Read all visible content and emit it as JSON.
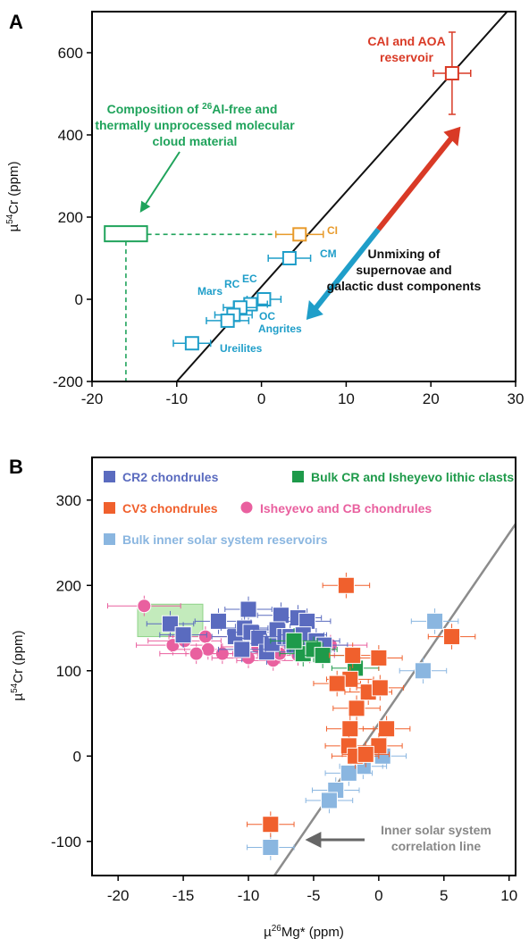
{
  "colors": {
    "cai": "#d93a26",
    "ci": "#e89a2a",
    "inner": "#1f9ec9",
    "cloud": "#1fa35b",
    "black": "#111111",
    "cr2": "#5a6bbf",
    "cv3": "#f0602d",
    "bulk_cr": "#1e9a4a",
    "cb": "#e9609f",
    "bulk_inner": "#8ab6e0",
    "line_gray": "#8c8c8c",
    "arrow_gray": "#666666"
  },
  "panels": {
    "a": {
      "letter": "A"
    },
    "b": {
      "letter": "B"
    }
  },
  "chart_data": [
    {
      "panel": "A",
      "type": "scatter",
      "xlim": [
        -20,
        30
      ],
      "ylim": [
        -200,
        700
      ],
      "xticks": [
        -20,
        -10,
        0,
        10,
        20,
        30
      ],
      "yticks": [
        -200,
        0,
        200,
        400,
        600
      ],
      "ylabel_parts": [
        "µ",
        "54",
        "Cr (ppm)"
      ],
      "correlation_line": {
        "p1": [
          -10,
          -200
        ],
        "p2": [
          29,
          700
        ]
      },
      "points": [
        {
          "name": "CAI and AOA reservoir",
          "x": 22.5,
          "y": 550,
          "xerr": 2.2,
          "yerr": 100,
          "color": "cai"
        },
        {
          "name": "CI",
          "x": 4.5,
          "y": 158,
          "xerr": 2.8,
          "yerr": 10,
          "color": "ci"
        },
        {
          "name": "CM",
          "x": 3.3,
          "y": 100,
          "xerr": 2.5,
          "yerr": 12,
          "color": "inner"
        },
        {
          "name": "EC",
          "x": 0.3,
          "y": 0,
          "xerr": 2.0,
          "yerr": 10,
          "color": "inner"
        },
        {
          "name": "RC",
          "x": -1.3,
          "y": -12,
          "xerr": 2.0,
          "yerr": 10,
          "color": "inner"
        },
        {
          "name": "Mars",
          "x": -2.5,
          "y": -20,
          "xerr": 2.0,
          "yerr": 10,
          "color": "inner"
        },
        {
          "name": "OC",
          "x": -3.3,
          "y": -38,
          "xerr": 2.2,
          "yerr": 10,
          "color": "inner"
        },
        {
          "name": "Angrites",
          "x": -4.0,
          "y": -52,
          "xerr": 2.5,
          "yerr": 12,
          "color": "inner"
        },
        {
          "name": "Ureilites",
          "x": -8.2,
          "y": -107,
          "xerr": 2.2,
          "yerr": 10,
          "color": "inner"
        }
      ],
      "point_labels": {
        "cai": "CAI and AOA\nreservoir",
        "ci": "CI",
        "cm": "CM",
        "ec": "EC",
        "rc": "RC",
        "mars": "Mars",
        "oc": "OC",
        "angrites": "Angrites",
        "ureilites": "Ureilites"
      },
      "cloud_box": {
        "x": [
          -18.5,
          -13.5
        ],
        "y": [
          141,
          178
        ],
        "level_y": 158,
        "x_mid": -16
      },
      "cloud_text": {
        "l1_pre": "Composition of ",
        "l1_sup": "26",
        "l1_post": "Al-free and",
        "l2": "thermally unprocessed molecular",
        "l3": "cloud material"
      },
      "unmixing_text": [
        "Unmixing of",
        "supernovae and",
        "galactic dust components"
      ]
    },
    {
      "panel": "B",
      "type": "scatter",
      "xlim": [
        -22,
        10.5
      ],
      "ylim": [
        -140,
        350
      ],
      "xticks": [
        -20,
        -15,
        -10,
        -5,
        0,
        5,
        10
      ],
      "yticks": [
        -100,
        0,
        100,
        200,
        300
      ],
      "xlabel_parts": [
        "µ",
        "26",
        "Mg* (ppm)"
      ],
      "ylabel_parts": [
        "µ",
        "54",
        "Cr (ppm)"
      ],
      "legend": [
        "CR2 chondrules",
        "Bulk CR and Isheyevo lithic clasts",
        "CV3 chondrules",
        "Isheyevo and CB chondrules",
        "Bulk inner solar system reservoirs"
      ],
      "annotation": [
        "Inner solar system",
        "correlation line"
      ],
      "correlation_line": {
        "p1": [
          -8,
          -140
        ],
        "p2": [
          10.5,
          272
        ]
      },
      "green_box": {
        "x": [
          -18.5,
          -13.5
        ],
        "y": [
          140,
          178
        ]
      },
      "series": [
        {
          "name": "CR2 chondrules",
          "color": "cr2",
          "shape": "square",
          "points": [
            [
              -16,
              155
            ],
            [
              -15,
              142
            ],
            [
              -12.3,
              158
            ],
            [
              -10,
              172
            ],
            [
              -7.5,
              165
            ],
            [
              -6.2,
              162
            ],
            [
              -5.5,
              158
            ],
            [
              -11,
              140
            ],
            [
              -10.3,
              150
            ],
            [
              -9.8,
              145
            ],
            [
              -9.2,
              138
            ],
            [
              -8.6,
              122
            ],
            [
              -8.2,
              132
            ],
            [
              -7.8,
              148
            ],
            [
              -7.2,
              140
            ],
            [
              -6.8,
              140
            ],
            [
              -6.5,
              130
            ],
            [
              -10.5,
              125
            ],
            [
              -5.8,
              142
            ],
            [
              -5.2,
              125
            ],
            [
              -4.8,
              135
            ],
            [
              -4.2,
              130
            ]
          ]
        },
        {
          "name": "Bulk CR and Isheyevo lithic clasts",
          "color": "bulk_cr",
          "shape": "square",
          "points": [
            [
              -5.8,
              120
            ],
            [
              -5,
              125
            ],
            [
              -4.3,
              118
            ],
            [
              -1.8,
              103
            ],
            [
              -6.5,
              135
            ]
          ]
        },
        {
          "name": "CV3 chondrules",
          "color": "cv3",
          "shape": "square",
          "points": [
            [
              -2.5,
              200
            ],
            [
              5.6,
              140
            ],
            [
              -2,
              118
            ],
            [
              0,
              115
            ],
            [
              -2.2,
              90
            ],
            [
              -3.2,
              85
            ],
            [
              -0.8,
              75
            ],
            [
              0.1,
              80
            ],
            [
              -1.7,
              56
            ],
            [
              0.6,
              32
            ],
            [
              -2.2,
              32
            ],
            [
              0,
              12
            ],
            [
              -2.3,
              12
            ],
            [
              -1.8,
              0
            ],
            [
              -1,
              2
            ],
            [
              -8.3,
              -80
            ]
          ]
        },
        {
          "name": "Isheyevo and CB chondrules",
          "color": "cb",
          "shape": "circle",
          "points": [
            [
              -18,
              176
            ],
            [
              -15.8,
              130
            ],
            [
              -14.9,
              135
            ],
            [
              -13.3,
              140
            ],
            [
              -13.1,
              125
            ],
            [
              -12,
              120
            ],
            [
              -10,
              115
            ],
            [
              -8.1,
              112
            ],
            [
              -6.2,
              118
            ],
            [
              -3.7,
              130
            ],
            [
              -14,
              120
            ],
            [
              -9.3,
              128
            ],
            [
              -7.6,
              120
            ]
          ]
        },
        {
          "name": "Bulk inner solar system reservoirs",
          "color": "bulk_inner",
          "shape": "square",
          "points": [
            [
              4.3,
              158
            ],
            [
              3.4,
              100
            ],
            [
              0.3,
              0
            ],
            [
              -1.2,
              -12
            ],
            [
              -2.3,
              -20
            ],
            [
              -3.3,
              -40
            ],
            [
              -3.8,
              -52
            ],
            [
              -8.3,
              -107
            ]
          ]
        }
      ]
    }
  ]
}
